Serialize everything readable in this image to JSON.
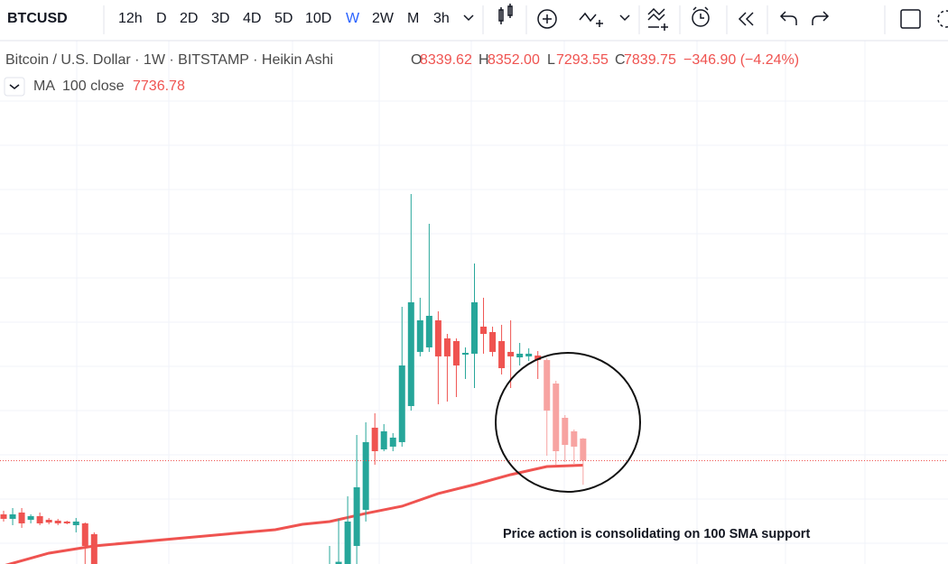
{
  "toolbar": {
    "symbol": "BTCUSD",
    "intervals": [
      "12h",
      "D",
      "2D",
      "3D",
      "4D",
      "5D",
      "10D",
      "W",
      "2W",
      "M",
      "3h"
    ],
    "active": 7,
    "active_color": "#2962ff"
  },
  "legend": {
    "title": "Bitcoin / U.S. Dollar · 1W · BITSTAMP · Heikin Ashi",
    "ohlc": [
      {
        "key": "O",
        "value": "8339.62"
      },
      {
        "key": "H",
        "value": "8352.00"
      },
      {
        "key": "L",
        "value": "7293.55"
      },
      {
        "key": "C",
        "value": "7839.75"
      }
    ],
    "change": "−346.90 (−4.24%)",
    "ma": {
      "name": "MA",
      "params": "100 close",
      "value": "7736.78"
    }
  },
  "chart_data": {
    "type": "candlestick",
    "xlim": [
      -0.4,
      104.3
    ],
    "ylim": [
      5500,
      17350
    ],
    "annotation": "Price action is consolidating on 100 SMA support",
    "series": [
      {
        "up_color": "#26a69a",
        "down_color": "#ef5350",
        "x": [
          0,
          1,
          2,
          3,
          4,
          5,
          6,
          7,
          8,
          9,
          10,
          36,
          37,
          38,
          39,
          40,
          41,
          42,
          43,
          44,
          45,
          46,
          47,
          48,
          49,
          50,
          51,
          52,
          53,
          54,
          55,
          56,
          57,
          58,
          59
        ],
        "open": [
          6624,
          6522,
          6665,
          6501,
          6583,
          6501,
          6481,
          6461,
          6379,
          6420,
          6175,
          5450,
          5450,
          5400,
          5909,
          6726,
          8586,
          8095,
          8157,
          8259,
          9076,
          10302,
          10404,
          11017,
          10608,
          10547,
          10240,
          10261,
          10874,
          10751,
          10547,
          10302,
          10179,
          10200,
          10220
        ],
        "high": [
          6706,
          6767,
          6767,
          6624,
          6665,
          6542,
          6522,
          6481,
          6542,
          6440,
          6216,
          5909,
          6522,
          7033,
          8422,
          8708,
          8912,
          8667,
          8463,
          11323,
          13877,
          11528,
          13202,
          11221,
          10710,
          10608,
          10404,
          12304,
          11528,
          10874,
          10915,
          11017,
          10506,
          10383,
          10322
        ],
        "low": [
          6461,
          6379,
          6318,
          6420,
          6379,
          6399,
          6379,
          6399,
          6216,
          5300,
          5300,
          5300,
          5350,
          5350,
          5501,
          6461,
          7748,
          8054,
          8054,
          8157,
          8974,
          10200,
          10302,
          9117,
          9178,
          9280,
          9689,
          9484,
          10261,
          10200,
          9791,
          9484,
          9995,
          10097,
          9689
        ],
        "close": [
          6522,
          6624,
          6420,
          6583,
          6420,
          6440,
          6420,
          6420,
          6461,
          5909,
          5400,
          5500,
          5550,
          6461,
          7237,
          8259,
          8054,
          8504,
          8361,
          9995,
          11425,
          11017,
          11119,
          10200,
          10200,
          9995,
          10281,
          11425,
          10710,
          10302,
          9934,
          10200,
          10261,
          10261,
          10118
        ]
      },
      {
        "up_color": "#8fd3cc",
        "down_color": "#f7a3a1",
        "x": [
          60,
          61,
          62,
          63,
          64
        ],
        "open": [
          10118,
          9586,
          8810,
          8504,
          8339.62
        ],
        "high": [
          10159,
          9648,
          8871,
          8545,
          8352
        ],
        "low": [
          7952,
          7748,
          7809,
          7748,
          7293.55
        ],
        "close": [
          8974,
          8054,
          8197,
          8157,
          7839.75
        ]
      }
    ],
    "ma": {
      "color": "#ef5350",
      "x": [
        0,
        5,
        10,
        20,
        30,
        33,
        36,
        40,
        44,
        48,
        52,
        56,
        60,
        64
      ],
      "values": [
        5460,
        5746,
        5909,
        6093,
        6277,
        6399,
        6461,
        6645,
        6808,
        7094,
        7298,
        7523,
        7707,
        7736.78
      ]
    },
    "last_price_color": "#ef5350"
  }
}
